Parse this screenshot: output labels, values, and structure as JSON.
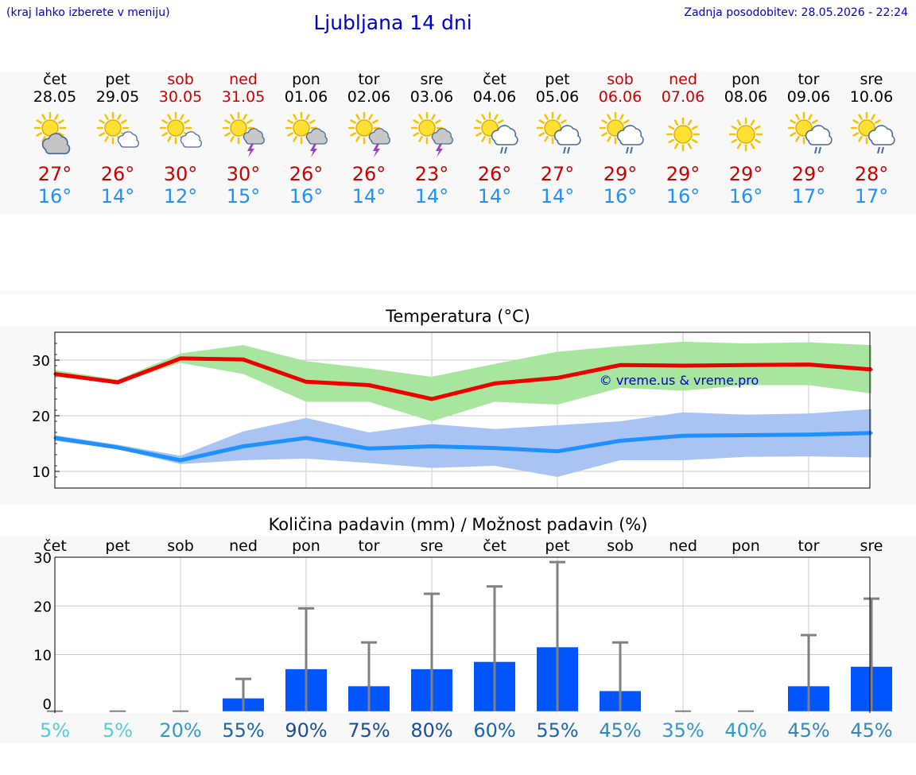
{
  "header": {
    "hint": "(kraj lahko izberete v meniju)",
    "title": "Ljubljana 14 dni",
    "updated": "Zadnja posodobitev: 28.05.2026 - 22:24"
  },
  "days": [
    {
      "name": "čet",
      "date": "28.05",
      "weekend": false,
      "icon": "sun-cloud-icon",
      "max": "27°",
      "min": "16°"
    },
    {
      "name": "pet",
      "date": "29.05",
      "weekend": false,
      "icon": "sun-small-cloud-icon",
      "max": "26°",
      "min": "14°"
    },
    {
      "name": "sob",
      "date": "30.05",
      "weekend": true,
      "icon": "sun-small-cloud-icon",
      "max": "30°",
      "min": "12°"
    },
    {
      "name": "ned",
      "date": "31.05",
      "weekend": true,
      "icon": "sun-thunderstorm-icon",
      "max": "30°",
      "min": "15°"
    },
    {
      "name": "pon",
      "date": "01.06",
      "weekend": false,
      "icon": "sun-thunderstorm-icon",
      "max": "26°",
      "min": "16°"
    },
    {
      "name": "tor",
      "date": "02.06",
      "weekend": false,
      "icon": "sun-thunderstorm-icon",
      "max": "26°",
      "min": "14°"
    },
    {
      "name": "sre",
      "date": "03.06",
      "weekend": false,
      "icon": "sun-thunderstorm-icon",
      "max": "23°",
      "min": "14°"
    },
    {
      "name": "čet",
      "date": "04.06",
      "weekend": false,
      "icon": "sun-rain-icon",
      "max": "26°",
      "min": "14°"
    },
    {
      "name": "pet",
      "date": "05.06",
      "weekend": false,
      "icon": "sun-rain-icon",
      "max": "27°",
      "min": "14°"
    },
    {
      "name": "sob",
      "date": "06.06",
      "weekend": true,
      "icon": "sun-rain-icon",
      "max": "29°",
      "min": "16°"
    },
    {
      "name": "ned",
      "date": "07.06",
      "weekend": true,
      "icon": "sun-icon",
      "max": "29°",
      "min": "16°"
    },
    {
      "name": "pon",
      "date": "08.06",
      "weekend": false,
      "icon": "sun-icon",
      "max": "29°",
      "min": "16°"
    },
    {
      "name": "tor",
      "date": "09.06",
      "weekend": false,
      "icon": "sun-rain-icon",
      "max": "29°",
      "min": "17°"
    },
    {
      "name": "sre",
      "date": "10.06",
      "weekend": false,
      "icon": "sun-rain-icon",
      "max": "28°",
      "min": "17°"
    }
  ],
  "colors": {
    "max_line": "#ee0000",
    "max_band": "#a8e6a0",
    "min_line": "#1e90ff",
    "min_band": "#a9c4f2",
    "bar": "#0055ff",
    "error_bar": "#808080",
    "watermark": "#0000cc",
    "grid": "#c8c8c8"
  },
  "chart_data": [
    {
      "type": "line",
      "title": "Temperatura (°C)",
      "x": [
        0,
        1,
        2,
        3,
        4,
        5,
        6,
        7,
        8,
        9,
        10,
        11,
        12,
        13
      ],
      "ylim": [
        7,
        35
      ],
      "yticks": [
        10,
        20,
        30
      ],
      "grid": true,
      "watermark": "© vreme.us & vreme.pro",
      "series": [
        {
          "values": [
            27.5,
            26,
            30.3,
            30.1,
            26.1,
            25.5,
            23,
            25.8,
            26.8,
            29.1,
            29,
            29.1,
            29.2,
            28.3
          ],
          "band_low": [
            27,
            25.8,
            29.5,
            27.5,
            22.5,
            22.5,
            19,
            22.5,
            22,
            25,
            24.5,
            25.5,
            25.5,
            24
          ],
          "band_high": [
            28.2,
            26.5,
            31.2,
            32.7,
            29.8,
            28.5,
            27,
            29.3,
            31.5,
            32.5,
            33.3,
            33,
            33.2,
            32.7
          ]
        },
        {
          "values": [
            16,
            14.3,
            12,
            14.5,
            16,
            14.1,
            14.5,
            14.2,
            13.6,
            15.5,
            16.4,
            16.5,
            16.6,
            16.9
          ],
          "band_low": [
            15.5,
            14,
            11.3,
            12,
            12.3,
            11.5,
            10.6,
            11,
            9,
            12,
            12,
            12.6,
            12.7,
            12.5
          ],
          "band_high": [
            16.5,
            14.8,
            12.8,
            17.2,
            19.6,
            17,
            18.5,
            17.6,
            18.3,
            19,
            20.6,
            20.2,
            20.4,
            21.2
          ]
        }
      ]
    },
    {
      "type": "bar",
      "title": "Količina padavin (mm) / Možnost padavin (%)",
      "categories": [
        "čet",
        "pet",
        "sob",
        "ned",
        "pon",
        "tor",
        "sre",
        "čet",
        "pet",
        "sob",
        "ned",
        "pon",
        "tor",
        "sre"
      ],
      "values": [
        0,
        0,
        0,
        1,
        7,
        3.5,
        7,
        8.5,
        11.5,
        2.5,
        0,
        0,
        3.5,
        7.5
      ],
      "error_high": [
        0,
        0,
        0,
        5,
        19.5,
        12.5,
        22.5,
        24,
        29,
        12.5,
        0,
        0,
        14,
        21.5
      ],
      "ylim": [
        -2,
        30
      ],
      "yticks": [
        0,
        10,
        20,
        30
      ],
      "grid": true,
      "probability": [
        {
          "label": "5%",
          "color": "#55ccdd"
        },
        {
          "label": "5%",
          "color": "#55ccdd"
        },
        {
          "label": "20%",
          "color": "#3399cc"
        },
        {
          "label": "55%",
          "color": "#1a66aa"
        },
        {
          "label": "90%",
          "color": "#1a4e9a"
        },
        {
          "label": "75%",
          "color": "#1a4e9a"
        },
        {
          "label": "80%",
          "color": "#1a4e9a"
        },
        {
          "label": "60%",
          "color": "#1a66aa"
        },
        {
          "label": "55%",
          "color": "#1a66aa"
        },
        {
          "label": "45%",
          "color": "#3388bb"
        },
        {
          "label": "35%",
          "color": "#3399cc"
        },
        {
          "label": "40%",
          "color": "#3399cc"
        },
        {
          "label": "45%",
          "color": "#3388bb"
        },
        {
          "label": "45%",
          "color": "#3388bb"
        }
      ]
    }
  ]
}
